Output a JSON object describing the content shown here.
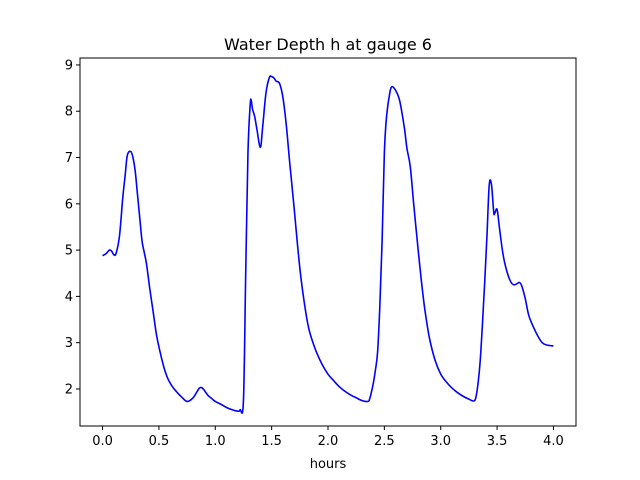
{
  "chart_data": {
    "type": "line",
    "title": "Water Depth h at gauge 6",
    "xlabel": "hours",
    "ylabel": "",
    "xlim": [
      -0.2,
      4.2
    ],
    "ylim": [
      1.2,
      9.15
    ],
    "xticks": [
      0.0,
      0.5,
      1.0,
      1.5,
      2.0,
      2.5,
      3.0,
      3.5,
      4.0
    ],
    "xtick_labels": [
      "0.0",
      "0.5",
      "1.0",
      "1.5",
      "2.0",
      "2.5",
      "3.0",
      "3.5",
      "4.0"
    ],
    "yticks": [
      2,
      3,
      4,
      5,
      6,
      7,
      8,
      9
    ],
    "ytick_labels": [
      "2",
      "3",
      "4",
      "5",
      "6",
      "7",
      "8",
      "9"
    ],
    "grid": false,
    "series": [
      {
        "color": "#0000ff",
        "x": [
          0.0,
          0.03,
          0.06,
          0.08,
          0.1,
          0.12,
          0.15,
          0.18,
          0.2,
          0.22,
          0.25,
          0.27,
          0.29,
          0.31,
          0.33,
          0.35,
          0.37,
          0.39,
          0.42,
          0.45,
          0.48,
          0.52,
          0.55,
          0.58,
          0.62,
          0.66,
          0.7,
          0.75,
          0.8,
          0.84,
          0.86,
          0.88,
          0.9,
          0.92,
          0.94,
          0.97,
          1.0,
          1.05,
          1.1,
          1.15,
          1.2,
          1.22,
          1.25,
          1.27,
          1.29,
          1.31,
          1.32,
          1.33,
          1.35,
          1.37,
          1.4,
          1.42,
          1.45,
          1.48,
          1.5,
          1.52,
          1.54,
          1.57,
          1.6,
          1.63,
          1.66,
          1.7,
          1.73,
          1.76,
          1.8,
          1.83,
          1.86,
          1.9,
          1.95,
          2.0,
          2.05,
          2.1,
          2.15,
          2.2,
          2.25,
          2.3,
          2.35,
          2.37,
          2.4,
          2.42,
          2.44,
          2.46,
          2.48,
          2.5,
          2.52,
          2.55,
          2.57,
          2.6,
          2.63,
          2.65,
          2.68,
          2.7,
          2.73,
          2.76,
          2.8,
          2.83,
          2.86,
          2.9,
          2.95,
          3.0,
          3.05,
          3.1,
          3.15,
          3.2,
          3.25,
          3.29,
          3.31,
          3.33,
          3.35,
          3.37,
          3.39,
          3.41,
          3.43,
          3.45,
          3.47,
          3.48,
          3.5,
          3.52,
          3.55,
          3.58,
          3.62,
          3.65,
          3.68,
          3.7,
          3.72,
          3.75,
          3.78,
          3.82,
          3.86,
          3.9,
          3.94,
          4.0
        ],
        "y": [
          4.88,
          4.92,
          5.0,
          4.98,
          4.9,
          4.93,
          5.3,
          6.15,
          6.6,
          7.05,
          7.13,
          7.0,
          6.7,
          6.2,
          5.7,
          5.2,
          4.95,
          4.7,
          4.15,
          3.65,
          3.15,
          2.7,
          2.42,
          2.22,
          2.05,
          1.93,
          1.83,
          1.73,
          1.8,
          1.95,
          2.02,
          2.03,
          1.98,
          1.91,
          1.85,
          1.79,
          1.73,
          1.67,
          1.6,
          1.55,
          1.52,
          1.55,
          1.75,
          4.5,
          7.1,
          8.15,
          8.22,
          8.05,
          7.88,
          7.6,
          7.22,
          7.65,
          8.4,
          8.73,
          8.75,
          8.72,
          8.65,
          8.6,
          8.3,
          7.7,
          6.9,
          5.9,
          5.1,
          4.4,
          3.7,
          3.3,
          3.05,
          2.78,
          2.52,
          2.32,
          2.18,
          2.05,
          1.95,
          1.87,
          1.81,
          1.75,
          1.73,
          1.79,
          2.1,
          2.4,
          2.8,
          3.8,
          5.2,
          7.1,
          7.9,
          8.42,
          8.53,
          8.45,
          8.28,
          8.05,
          7.6,
          7.2,
          6.8,
          6.0,
          5.0,
          4.3,
          3.7,
          3.1,
          2.62,
          2.32,
          2.15,
          2.02,
          1.92,
          1.84,
          1.78,
          1.74,
          1.8,
          2.1,
          2.6,
          3.4,
          4.3,
          5.3,
          6.4,
          6.42,
          5.82,
          5.8,
          5.88,
          5.5,
          4.95,
          4.6,
          4.32,
          4.25,
          4.28,
          4.3,
          4.22,
          3.95,
          3.6,
          3.35,
          3.15,
          3.0,
          2.95,
          2.93
        ]
      }
    ]
  }
}
